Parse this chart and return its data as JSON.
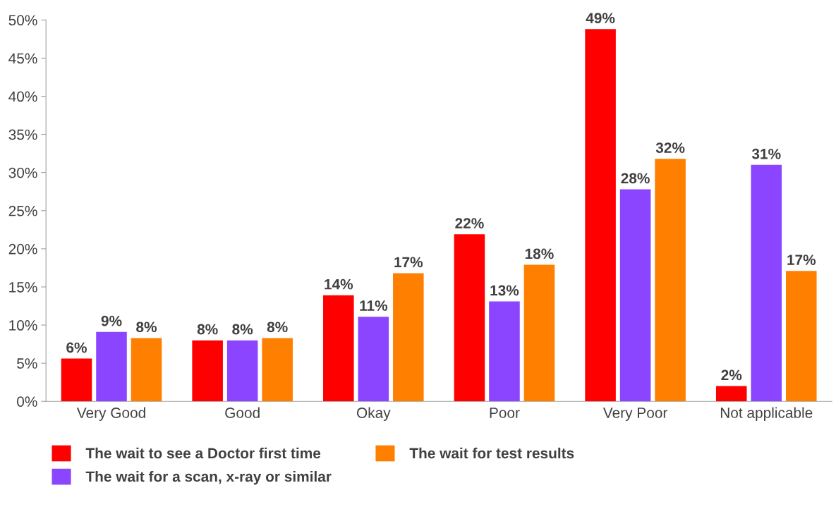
{
  "chart_data": {
    "type": "bar",
    "categories": [
      "Very Good",
      "Good",
      "Okay",
      "Poor",
      "Very Poor",
      "Not applicable"
    ],
    "series": [
      {
        "name": "The wait to see a Doctor first time",
        "color": "#ff0000",
        "values": [
          5.6,
          8.0,
          13.9,
          21.9,
          48.8,
          2.0
        ],
        "value_labels": [
          "6%",
          "8%",
          "14%",
          "22%",
          "49%",
          "2%"
        ]
      },
      {
        "name": "The wait for a scan, x-ray or similar",
        "color": "#8c45ff",
        "values": [
          9.1,
          8.0,
          11.1,
          13.1,
          27.8,
          31.0
        ],
        "value_labels": [
          "9%",
          "8%",
          "11%",
          "13%",
          "28%",
          "31%"
        ]
      },
      {
        "name": "The wait for test results",
        "color": "#ff8000",
        "values": [
          8.3,
          8.3,
          16.8,
          17.9,
          31.8,
          17.1
        ],
        "value_labels": [
          "8%",
          "8%",
          "17%",
          "18%",
          "32%",
          "17%"
        ]
      }
    ],
    "ylim": [
      0,
      50
    ],
    "yticks": [
      {
        "value": 0,
        "label": "0%"
      },
      {
        "value": 5,
        "label": "5%"
      },
      {
        "value": 10,
        "label": "10%"
      },
      {
        "value": 15,
        "label": "15%"
      },
      {
        "value": 20,
        "label": "20%"
      },
      {
        "value": 25,
        "label": "25%"
      },
      {
        "value": 30,
        "label": "30%"
      },
      {
        "value": 35,
        "label": "35%"
      },
      {
        "value": 40,
        "label": "40%"
      },
      {
        "value": 45,
        "label": "45%"
      },
      {
        "value": 50,
        "label": "50%"
      }
    ],
    "grid": false,
    "legend": "bottom"
  }
}
